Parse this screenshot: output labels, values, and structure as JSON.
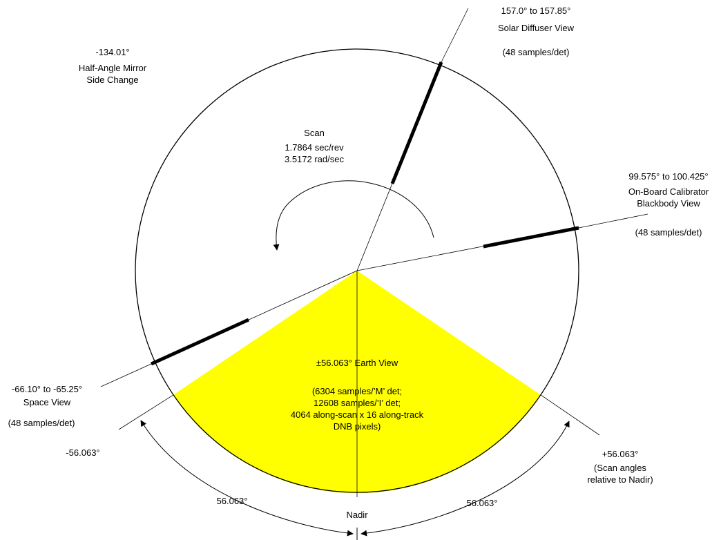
{
  "colors": {
    "earth_view_fill": "#ffff00",
    "line": "#000000",
    "background": "#ffffff"
  },
  "scan": {
    "title": "Scan",
    "period": "1.7864 sec/rev",
    "rate": "3.5172 rad/sec"
  },
  "solar_diffuser": {
    "range": "157.0° to 157.85°",
    "name": "Solar Diffuser View",
    "samples": "(48 samples/det)"
  },
  "half_angle_mirror": {
    "angle": "-134.01°",
    "line1": "Half-Angle Mirror",
    "line2": "Side Change"
  },
  "blackbody": {
    "range": "99.575° to 100.425°",
    "line1": "On-Board Calibrator",
    "line2": "Blackbody View",
    "samples": "(48 samples/det)"
  },
  "space_view": {
    "range": "-66.10° to -65.25°",
    "name": "Space View",
    "samples": "(48 samples/det)"
  },
  "earth_view": {
    "title": "±56.063° Earth View",
    "line1": "(6304 samples/’M’ det;",
    "line2": "12608 samples/’I’ det;",
    "line3": "4064 along-scan x 16 along-track",
    "line4": "DNB pixels)"
  },
  "left_limit": "-56.063°",
  "right_limit": {
    "angle": "+56.063°",
    "note1": "(Scan angles",
    "note2": "relative to Nadir)"
  },
  "left_span": "56.063°",
  "right_span": "56.063°",
  "nadir": "Nadir"
}
